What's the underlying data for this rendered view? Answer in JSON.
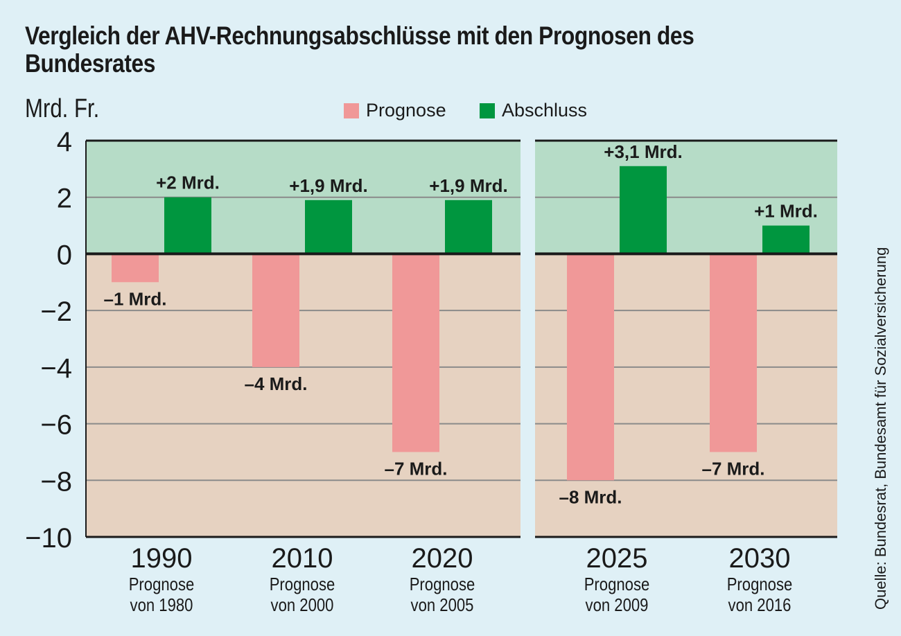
{
  "chart_data": {
    "type": "bar",
    "title": "Vergleich der AHV-Rechnungsabschlüsse mit den Prognosen des Bundesrates",
    "ylabel": "Mrd. Fr.",
    "xlabel": "",
    "ylim": [
      -10,
      4
    ],
    "yticks": [
      "4",
      "2",
      "0",
      "−2",
      "−4",
      "−6",
      "−8",
      "−10"
    ],
    "ytick_values": [
      4,
      2,
      0,
      -2,
      -4,
      -6,
      -8,
      -10
    ],
    "grid": true,
    "legend": [
      {
        "name": "Prognose",
        "color": "#f09898"
      },
      {
        "name": "Abschluss",
        "color": "#00963f"
      }
    ],
    "legend_position": "top-center",
    "categories": [
      {
        "year": "1990",
        "sub1": "Prognose",
        "sub2": "von 1980",
        "panel": 1
      },
      {
        "year": "2010",
        "sub1": "Prognose",
        "sub2": "von 2000",
        "panel": 1
      },
      {
        "year": "2020",
        "sub1": "Prognose",
        "sub2": "von 2005",
        "panel": 1
      },
      {
        "year": "2025",
        "sub1": "Prognose",
        "sub2": "von 2009",
        "panel": 2
      },
      {
        "year": "2030",
        "sub1": "Prognose",
        "sub2": "von 2016",
        "panel": 2
      }
    ],
    "series": [
      {
        "name": "Prognose",
        "values": [
          -1,
          -4,
          -7,
          -8,
          -7
        ],
        "labels": [
          "–1 Mrd.",
          "–4 Mrd.",
          "–7 Mrd.",
          "–8 Mrd.",
          "–7 Mrd."
        ]
      },
      {
        "name": "Abschluss",
        "values": [
          2,
          1.9,
          1.9,
          3.1,
          1
        ],
        "labels": [
          "+2 Mrd.",
          "+1,9 Mrd.",
          "+1,9 Mrd.",
          "+3,1 Mrd.",
          "+1 Mrd."
        ]
      }
    ],
    "source": "Quelle: Bundesrat, Bundesamt für Sozialversicherung"
  },
  "colors": {
    "background": "#dff0f6",
    "positive_area": "#b6dcc7",
    "negative_area": "#e6d2c1",
    "prognose": "#f09898",
    "abschluss": "#00963f"
  }
}
